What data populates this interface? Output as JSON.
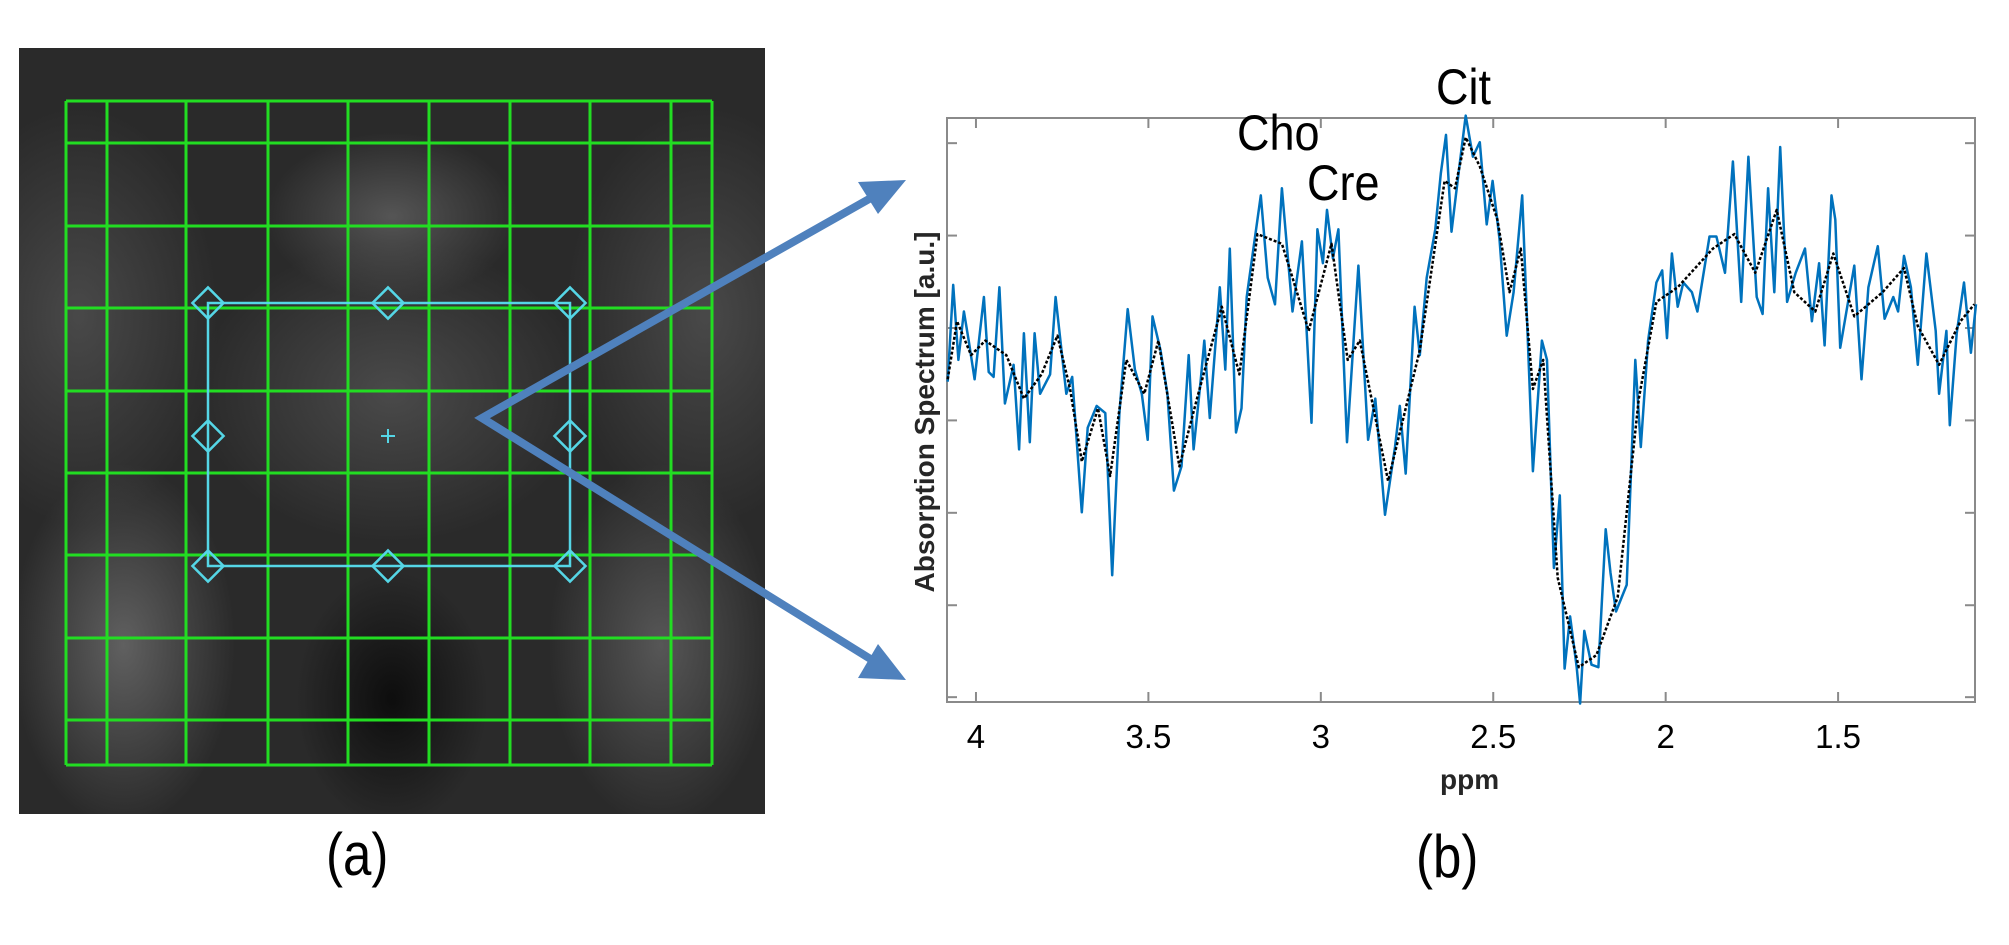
{
  "panels": {
    "a_label": "(a)",
    "b_label": "(b)"
  },
  "image_overlay": {
    "grid_color": "#22dd22",
    "voxel_box_color": "#55d6e6",
    "arrow_color": "#4f81bd"
  },
  "chart_data": {
    "type": "line",
    "xlabel": "ppm",
    "ylabel": "Absorption Spectrum [a.u.]",
    "xlim": [
      4.084,
      1.103
    ],
    "x_reversed": true,
    "xticks": [
      4,
      3.5,
      3,
      2.5,
      2,
      1.5
    ],
    "xtick_labels": [
      "4",
      "3.5",
      "3",
      "2.5",
      "2",
      "1.5"
    ],
    "ylim": [
      0,
      120.7
    ],
    "yticks": [
      1,
      20,
      39.1,
      58.2,
      77.3,
      96.4,
      115.5
    ],
    "ytick_labels_shown": false,
    "grid": false,
    "annotations": [
      {
        "text": "Cho",
        "x": 3.2
      },
      {
        "text": "Cre",
        "x": 3.02
      },
      {
        "text": "Cit",
        "x": 2.58
      }
    ],
    "series": [
      {
        "style": "solid",
        "color": "#0072bd",
        "x": [
          4.082,
          4.066,
          4.051,
          4.035,
          4.021,
          4.004,
          3.977,
          3.963,
          3.949,
          3.932,
          3.916,
          3.891,
          3.875,
          3.861,
          3.844,
          3.83,
          3.814,
          3.785,
          3.769,
          3.738,
          3.721,
          3.693,
          3.676,
          3.65,
          3.625,
          3.605,
          3.584,
          3.56,
          3.539,
          3.519,
          3.502,
          3.488,
          3.465,
          3.445,
          3.426,
          3.404,
          3.383,
          3.369,
          3.348,
          3.338,
          3.322,
          3.293,
          3.277,
          3.264,
          3.246,
          3.23,
          3.215,
          3.174,
          3.154,
          3.133,
          3.113,
          3.082,
          3.055,
          3.027,
          3.01,
          2.994,
          2.982,
          2.965,
          2.949,
          2.924,
          2.891,
          2.863,
          2.842,
          2.814,
          2.785,
          2.771,
          2.754,
          2.728,
          2.713,
          2.693,
          2.668,
          2.652,
          2.637,
          2.621,
          2.6,
          2.58,
          2.559,
          2.539,
          2.519,
          2.502,
          2.482,
          2.461,
          2.441,
          2.416,
          2.385,
          2.359,
          2.344,
          2.324,
          2.307,
          2.293,
          2.277,
          2.258,
          2.248,
          2.236,
          2.215,
          2.195,
          2.174,
          2.16,
          2.144,
          2.113,
          2.088,
          2.072,
          2.051,
          2.027,
          2.01,
          1.996,
          1.982,
          1.965,
          1.949,
          1.924,
          1.908,
          1.873,
          1.853,
          1.828,
          1.805,
          1.781,
          1.76,
          1.736,
          1.719,
          1.703,
          1.685,
          1.668,
          1.648,
          1.623,
          1.596,
          1.576,
          1.555,
          1.539,
          1.519,
          1.508,
          1.494,
          1.453,
          1.432,
          1.412,
          1.385,
          1.365,
          1.34,
          1.326,
          1.309,
          1.289,
          1.269,
          1.244,
          1.217,
          1.207,
          1.186,
          1.176,
          1.156,
          1.135,
          1.115,
          1.1
        ],
        "y": [
          66.2,
          86.2,
          70.7,
          80.7,
          74.7,
          66.7,
          83.7,
          68.2,
          67.2,
          85.7,
          61.7,
          69.7,
          52.2,
          76.2,
          53.7,
          76.2,
          63.7,
          67.7,
          83.7,
          63.7,
          67.2,
          39.2,
          56.7,
          61.2,
          59.7,
          26.2,
          59.7,
          81.2,
          68.7,
          63.7,
          54.2,
          79.7,
          72.7,
          63.7,
          43.7,
          48.7,
          71.7,
          52.2,
          66.7,
          74.7,
          58.7,
          85.7,
          68.7,
          93.7,
          55.7,
          60.7,
          83.7,
          104.7,
          87.7,
          82.2,
          106.2,
          80.7,
          95.2,
          57.7,
          97.7,
          90.7,
          101.7,
          91.7,
          97.7,
          53.7,
          90.2,
          54.2,
          62.7,
          38.7,
          52.7,
          61.2,
          47.2,
          81.7,
          71.7,
          87.7,
          97.7,
          109.2,
          117.2,
          97.2,
          109.7,
          121.2,
          112.7,
          115.7,
          98.7,
          107.7,
          95.7,
          75.7,
          84.7,
          104.7,
          47.7,
          74.7,
          70.7,
          27.7,
          42.7,
          6.9,
          17.7,
          7.2,
          -0.3,
          14.7,
          7.7,
          7.2,
          35.7,
          26.7,
          18.7,
          24.2,
          70.7,
          52.7,
          74.7,
          86.7,
          89.2,
          75.2,
          92.7,
          81.7,
          86.7,
          84.7,
          80.7,
          96.2,
          96.2,
          88.7,
          111.7,
          82.7,
          112.7,
          83.7,
          80.2,
          106.2,
          84.7,
          114.7,
          82.7,
          88.7,
          93.7,
          78.7,
          90.7,
          73.7,
          104.7,
          99.7,
          73.2,
          90.2,
          66.7,
          85.7,
          94.2,
          79.2,
          83.7,
          80.7,
          92.2,
          85.7,
          69.7,
          92.7,
          76.7,
          63.7,
          76.7,
          57.2,
          76.2,
          86.7,
          72.2,
          82.2
        ]
      },
      {
        "style": "dotted",
        "color": "#000000",
        "x": [
          4.082,
          4.055,
          4.014,
          3.973,
          3.912,
          3.861,
          3.81,
          3.764,
          3.727,
          3.693,
          3.646,
          3.611,
          3.564,
          3.512,
          3.471,
          3.41,
          3.359,
          3.287,
          3.236,
          3.184,
          3.113,
          3.082,
          3.035,
          2.969,
          2.922,
          2.887,
          2.805,
          2.713,
          2.641,
          2.611,
          2.58,
          2.539,
          2.488,
          2.453,
          2.42,
          2.385,
          2.355,
          2.313,
          2.252,
          2.201,
          2.139,
          2.078,
          2.027,
          1.965,
          1.863,
          1.801,
          1.74,
          1.678,
          1.627,
          1.566,
          1.514,
          1.453,
          1.371,
          1.309,
          1.269,
          1.207,
          1.145,
          1.105
        ],
        "y": [
          66.7,
          78.7,
          71.7,
          74.7,
          71.7,
          62.7,
          67.7,
          75.7,
          64.7,
          49.7,
          60.7,
          46.7,
          70.7,
          63.7,
          74.7,
          48.7,
          62.7,
          81.7,
          67.7,
          96.7,
          94.7,
          87.7,
          76.7,
          94.7,
          70.7,
          74.7,
          45.7,
          72.7,
          107.7,
          106.2,
          116.7,
          110.7,
          99.7,
          84.7,
          93.7,
          64.7,
          70.7,
          25.7,
          7.2,
          9.7,
          21.7,
          62.7,
          82.7,
          85.7,
          93.7,
          96.7,
          88.7,
          101.7,
          84.7,
          80.7,
          92.7,
          79.7,
          84.7,
          89.7,
          77.7,
          69.7,
          78.7,
          82.2
        ]
      }
    ]
  }
}
